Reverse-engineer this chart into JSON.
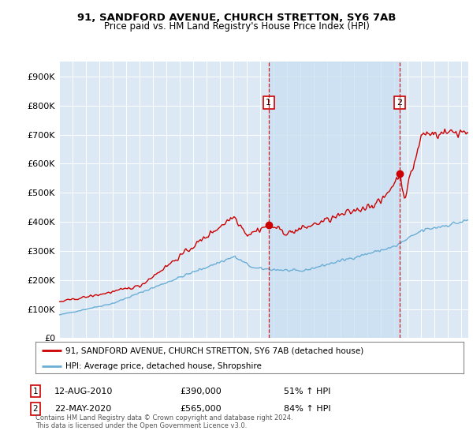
{
  "title": "91, SANDFORD AVENUE, CHURCH STRETTON, SY6 7AB",
  "subtitle": "Price paid vs. HM Land Registry's House Price Index (HPI)",
  "property_label": "91, SANDFORD AVENUE, CHURCH STRETTON, SY6 7AB (detached house)",
  "hpi_label": "HPI: Average price, detached house, Shropshire",
  "transaction1_date": "12-AUG-2010",
  "transaction1_price": 390000,
  "transaction1_hpi": "51% ↑ HPI",
  "transaction1_year": 2010.62,
  "transaction2_date": "22-MAY-2020",
  "transaction2_price": 565000,
  "transaction2_hpi": "84% ↑ HPI",
  "transaction2_year": 2020.38,
  "footer": "Contains HM Land Registry data © Crown copyright and database right 2024.\nThis data is licensed under the Open Government Licence v3.0.",
  "plot_bg_color": "#dce9f5",
  "red_color": "#cc0000",
  "blue_color": "#6aaed6",
  "shade_color": "#c8dff2",
  "ylim": [
    0,
    950000
  ],
  "yticks": [
    0,
    100000,
    200000,
    300000,
    400000,
    500000,
    600000,
    700000,
    800000,
    900000
  ],
  "ytick_labels": [
    "£0",
    "£100K",
    "£200K",
    "£300K",
    "£400K",
    "£500K",
    "£600K",
    "£700K",
    "£800K",
    "£900K"
  ],
  "xlim_start": 1995,
  "xlim_end": 2025.5
}
